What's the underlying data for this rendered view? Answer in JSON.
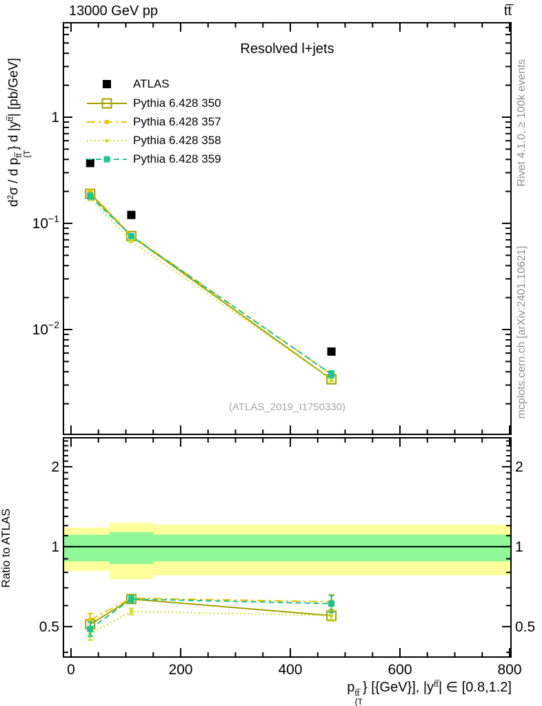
{
  "header": {
    "left": "13000 GeV pp",
    "right": "tt̅"
  },
  "panel_title": "Resolved l+jets",
  "watermark": "(ATLAS_2019_I1750330)",
  "ratio_ylabel": "Ratio to ATLAS",
  "side_notes": {
    "top": "Rivet 4.1.0, ≥ 100k events",
    "bottom": "mcplots.cern.ch [arXiv:2401.10621]"
  },
  "ylabel_parts": [
    [
      "n",
      "d"
    ],
    [
      "sup",
      "2"
    ],
    [
      "n",
      "σ / d p"
    ],
    [
      "stack",
      "tt̅",
      "{T"
    ],
    [
      "n",
      "} d |y"
    ],
    [
      "sup",
      "tt̅"
    ],
    [
      "n",
      "| [pb/GeV]"
    ]
  ],
  "xlabel_parts": [
    [
      "n",
      "p"
    ],
    [
      "stack",
      "tt̅",
      "{T"
    ],
    [
      "n",
      "} [{GeV}], |y"
    ],
    [
      "sup",
      "tt̅"
    ],
    [
      "n",
      "| ∈ [0.8,1.2]"
    ]
  ],
  "legend": {
    "entries": [
      {
        "label": "ATLAS",
        "color": "#000000",
        "line": "none",
        "marker": "square-filled",
        "marker_size": 12
      },
      {
        "label": "Pythia 6.428 350",
        "color": "#a0a000",
        "line": "solid",
        "marker": "square-open",
        "marker_size": 13
      },
      {
        "label": "Pythia 6.428 357",
        "color": "#e6c200",
        "line": "dashdot",
        "marker": "square-filled",
        "marker_size": 6
      },
      {
        "label": "Pythia 6.428 358",
        "color": "#cbdc28",
        "line": "dotted",
        "marker": "square-filled",
        "marker_size": 5
      },
      {
        "label": "Pythia 6.428 359",
        "color": "#20c28e",
        "line": "dashed",
        "marker": "square-filled",
        "marker_size": 9
      }
    ]
  },
  "chart_data": {
    "type": "line",
    "title": "Resolved l+jets",
    "xlabel": "p_T^{ttbar} [GeV], |y^{ttbar}| ∈ [0.8,1.2]",
    "ylabel": "d²σ / dp_T^{ttbar} d|y^{ttbar}| [pb/GeV]",
    "ratio_label": "Ratio to ATLAS",
    "x_points": [
      35,
      110,
      475
    ],
    "bin_edges": [
      0,
      70,
      150,
      800
    ],
    "axes": {
      "x": {
        "min": -13.8,
        "max": 802.5,
        "major": [
          0,
          200,
          400,
          600,
          800
        ],
        "labels": [
          "0",
          "200",
          "400",
          "600",
          "800"
        ],
        "minor_step": 50,
        "scale": "linear"
      },
      "y_main": {
        "min": 0.00103,
        "max": 7.75,
        "scale": "log",
        "labels": [
          {
            "v": 1,
            "base": "1",
            "exp": ""
          },
          {
            "v": 0.1,
            "base": "10",
            "exp": "−1"
          },
          {
            "v": 0.01,
            "base": "10",
            "exp": "−2"
          }
        ]
      },
      "y_ratio": {
        "min": 0.384,
        "max": 2.57,
        "scale": "log",
        "labels": [
          {
            "v": 2,
            "t": "2"
          },
          {
            "v": 1,
            "t": "1"
          },
          {
            "v": 0.5,
            "t": "0.5"
          }
        ],
        "minor_from": 0.4,
        "minor_to": 2.5,
        "minor_step": 0.1
      }
    },
    "atlas": {
      "name": "ATLAS",
      "color": "#000000",
      "marker_size": 12,
      "y": [
        0.37,
        0.12,
        0.0062
      ]
    },
    "series": [
      {
        "name": "Pythia 6.428 350",
        "color": "#a0a000",
        "line": "solid",
        "marker": "square-open",
        "marker_size": 13,
        "y": [
          0.19,
          0.076,
          0.0034
        ],
        "ratio": [
          0.51,
          0.635,
          0.55
        ],
        "ratio_err": [
          0.02,
          0.015,
          0.025
        ]
      },
      {
        "name": "Pythia 6.428 357",
        "color": "#e6c200",
        "line": "dashdot",
        "marker": "square-filled",
        "marker_size": 6,
        "y": [
          0.196,
          0.077,
          0.0038
        ],
        "ratio": [
          0.53,
          0.64,
          0.62
        ],
        "ratio_err": [
          0.03,
          0.015,
          0.04
        ]
      },
      {
        "name": "Pythia 6.428 358",
        "color": "#cbdc28",
        "line": "dotted",
        "marker": "square-filled",
        "marker_size": 5,
        "y": [
          0.174,
          0.068,
          0.0034
        ],
        "ratio": [
          0.47,
          0.57,
          0.55
        ],
        "ratio_err": [
          0.025,
          0.015,
          0.025
        ]
      },
      {
        "name": "Pythia 6.428 359",
        "color": "#20c28e",
        "line": "dashed",
        "marker": "square-filled",
        "marker_size": 9,
        "y": [
          0.181,
          0.076,
          0.0038
        ],
        "ratio": [
          0.49,
          0.635,
          0.61
        ],
        "ratio_err": [
          0.03,
          0.02,
          0.045
        ]
      }
    ],
    "uncertainty_bands": {
      "colors": {
        "yellow": "#ffff9c",
        "green": "#90f898"
      },
      "bins": [
        {
          "range": [
            0,
            70
          ],
          "yellow": [
            0.81,
            1.18
          ],
          "green": [
            0.88,
            1.11
          ]
        },
        {
          "range": [
            70,
            150
          ],
          "yellow": [
            0.755,
            1.23
          ],
          "green": [
            0.86,
            1.135
          ]
        },
        {
          "range": [
            150,
            800
          ],
          "yellow": [
            0.78,
            1.21
          ],
          "green": [
            0.88,
            1.11
          ]
        }
      ]
    },
    "reference_line": 1
  }
}
